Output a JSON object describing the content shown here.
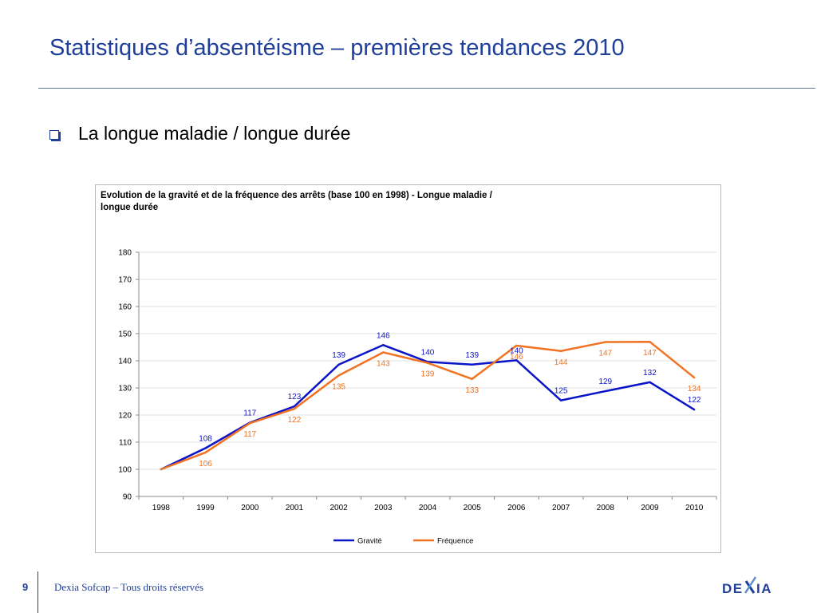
{
  "slide": {
    "title": "Statistiques d’absentéisme – premières tendances 2010",
    "bullet": "La longue maladie / longue durée"
  },
  "footer": {
    "page_number": "9",
    "text": "Dexia Sofcap – Tous droits réservés",
    "brand": "DEXIA"
  },
  "colors": {
    "title": "#1f3f9a",
    "gravite": "#0a14c8",
    "frequence": "#f07222",
    "rule": "#5b7b9a"
  },
  "icons": {
    "bullet": "hollow-square-bullet-icon"
  },
  "chart_data": {
    "type": "line",
    "title_lines": [
      "Evolution de la gravité et de la fréquence des arrêts (base 100 en 1998) - Longue maladie /",
      "longue durée"
    ],
    "categories": [
      "1998",
      "1999",
      "2000",
      "2001",
      "2002",
      "2003",
      "2004",
      "2005",
      "2006",
      "2007",
      "2008",
      "2009",
      "2010"
    ],
    "ylim": [
      90,
      180
    ],
    "yticks": [
      90,
      100,
      110,
      120,
      130,
      140,
      150,
      160,
      170,
      180
    ],
    "grid": true,
    "legend_position": "bottom",
    "series": [
      {
        "name": "Gravité",
        "color": "#0a14c8",
        "values": [
          100,
          107.8,
          117.2,
          123.2,
          138.6,
          145.8,
          139.6,
          138.6,
          140.2,
          125.4,
          128.8,
          132.1,
          122.0
        ],
        "labels": [
          "",
          "108",
          "117",
          "123",
          "139",
          "146",
          "140",
          "139",
          "140",
          "125",
          "129",
          "132",
          "122"
        ]
      },
      {
        "name": "Fréquence",
        "color": "#f07222",
        "values": [
          100,
          106.2,
          117.0,
          122.3,
          134.6,
          143.1,
          139.2,
          133.3,
          145.6,
          143.6,
          146.9,
          147.0,
          133.8
        ],
        "labels": [
          "",
          "106",
          "117",
          "122",
          "135",
          "143",
          "139",
          "133",
          "146",
          "144",
          "147",
          "147",
          "134"
        ]
      }
    ]
  }
}
